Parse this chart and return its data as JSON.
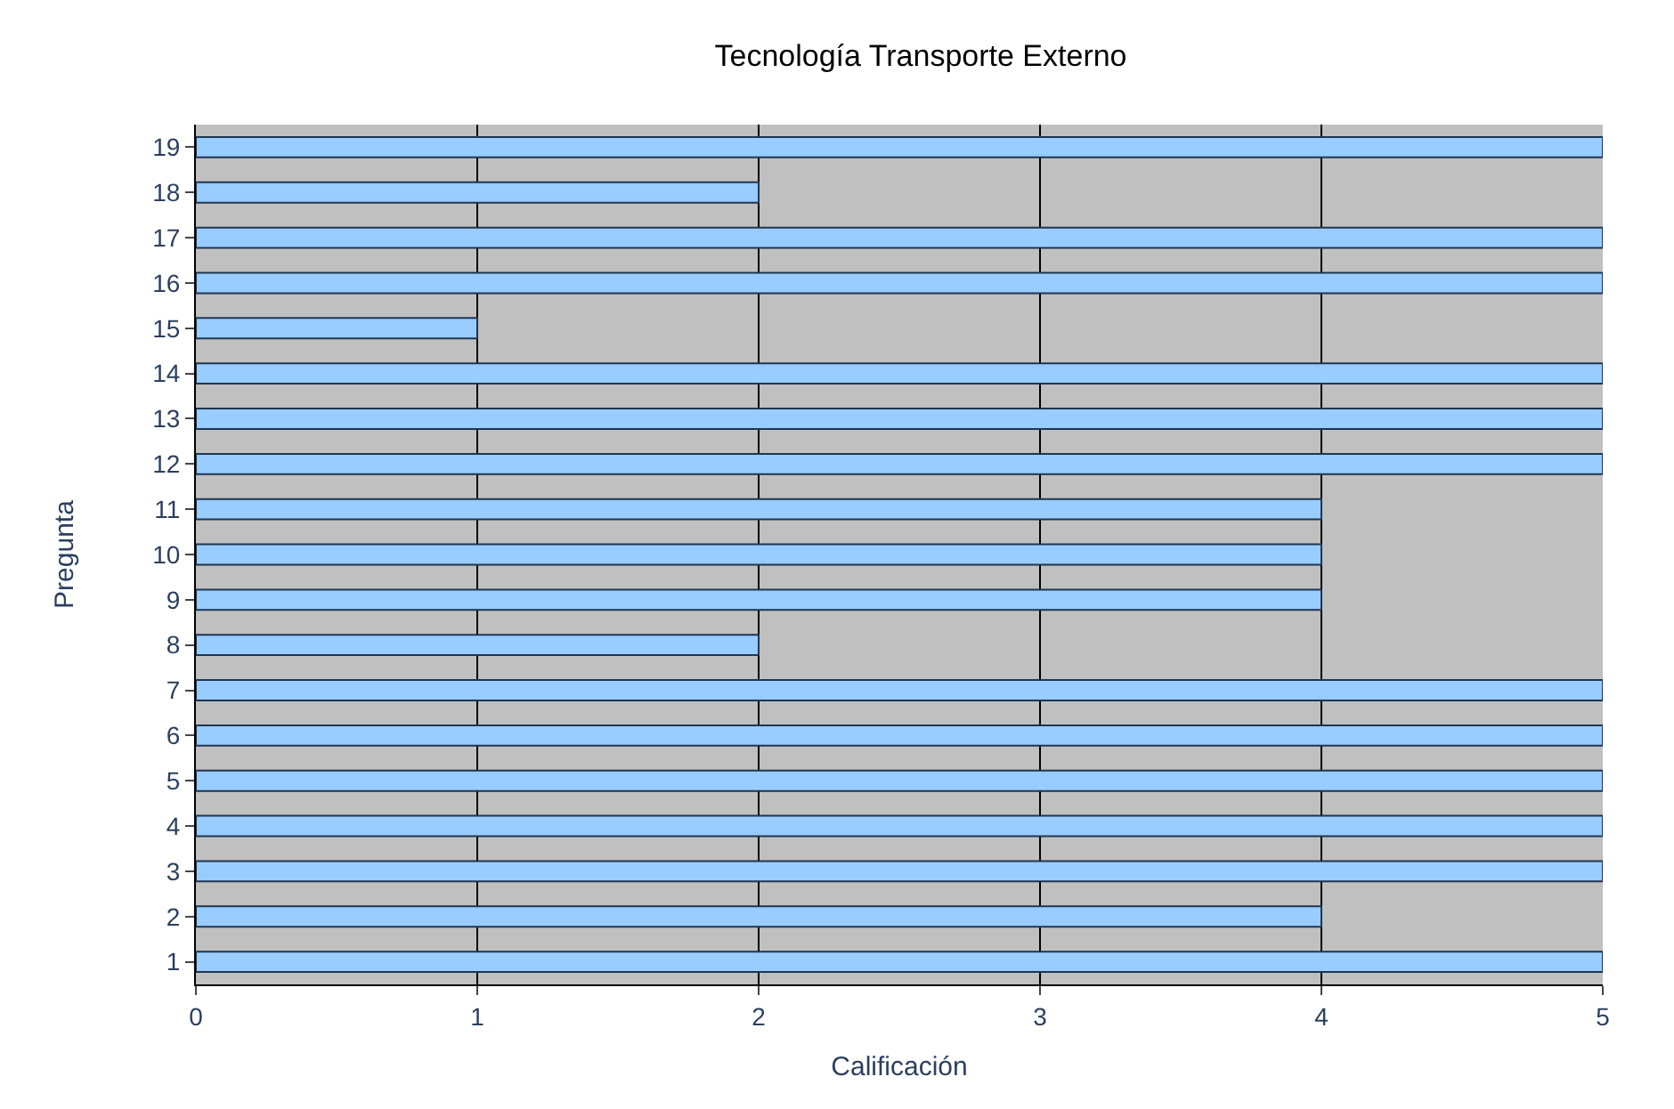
{
  "chart_data": {
    "type": "bar",
    "orientation": "horizontal",
    "title": "Tecnología Transporte Externo",
    "xlabel": "Calificación",
    "ylabel": "Pregunta",
    "categories": [
      "19",
      "18",
      "17",
      "16",
      "15",
      "14",
      "13",
      "12",
      "11",
      "10",
      "9",
      "8",
      "7",
      "6",
      "5",
      "4",
      "3",
      "2",
      "1"
    ],
    "values": [
      5,
      2,
      5,
      5,
      1,
      5,
      5,
      5,
      4,
      4,
      4,
      2,
      5,
      5,
      5,
      5,
      5,
      4,
      5
    ],
    "color": "#99ccff",
    "xlim": [
      0,
      5
    ],
    "xticks": [
      0,
      1,
      2,
      3,
      4,
      5
    ],
    "grid": "x",
    "legend": false
  }
}
